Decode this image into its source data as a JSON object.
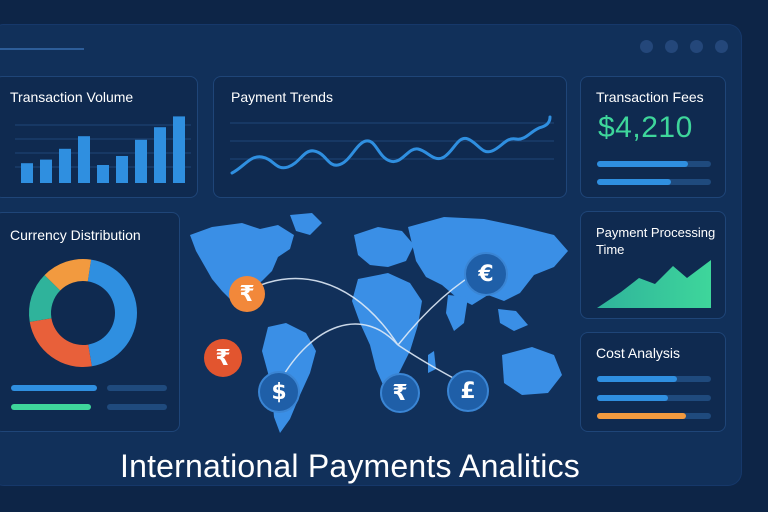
{
  "title": "International Payments Analitics",
  "cards": {
    "transaction_volume": {
      "title": "Transaction Volume",
      "bar_values": [
        22,
        26,
        38,
        52,
        20,
        30,
        48,
        62,
        74
      ]
    },
    "payment_trends": {
      "title": "Payment Trends"
    },
    "transaction_fees": {
      "title": "Transaction Fees",
      "value": "$4,210",
      "bars": [
        0.8,
        0.65
      ]
    },
    "currency_distribution": {
      "title": "Currency Distribution",
      "segments": [
        {
          "color": "#2f8fe0",
          "value": 45
        },
        {
          "color": "#e8603a",
          "value": 25
        },
        {
          "color": "#2fb39b",
          "value": 15
        },
        {
          "color": "#f29a3f",
          "value": 15
        }
      ]
    },
    "processing_time": {
      "title": "Payment Processing Time"
    },
    "cost_analysis": {
      "title": "Cost Analysis",
      "bars": [
        0.7,
        0.62,
        0.78
      ]
    }
  },
  "currency_symbols": {
    "rupee": "₹",
    "dollar": "$",
    "euro": "€",
    "pound": "£"
  },
  "colors": {
    "accent_blue": "#2f8fe0",
    "accent_green": "#3ed69b",
    "accent_orange": "#f29a3f",
    "map": "#3a8fe6"
  }
}
